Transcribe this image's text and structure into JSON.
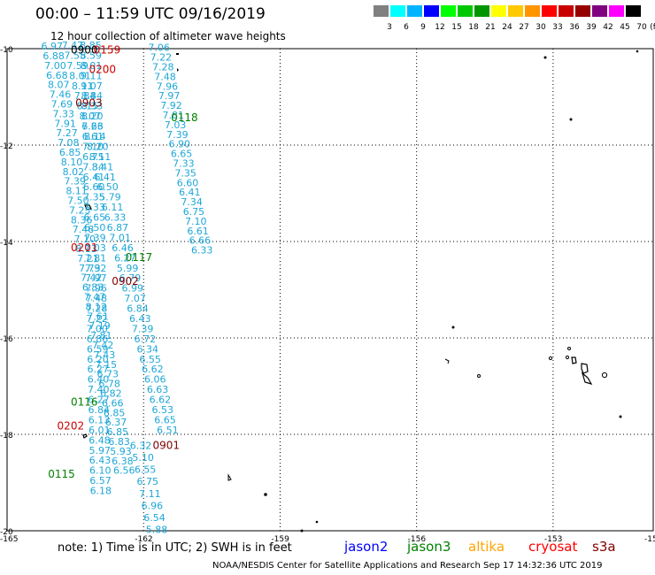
{
  "title": "00:00 – 11:59 UTC 09/16/2019",
  "subtitle": "12 hour collection of altimeter wave heights",
  "legend": {
    "unit": "(ft)",
    "colors": [
      "#808080",
      "#00ffff",
      "#00b4ff",
      "#0000ff",
      "#00ff00",
      "#00c800",
      "#009600",
      "#ffff00",
      "#ffc800",
      "#ff9600",
      "#ff0000",
      "#c80000",
      "#960000",
      "#800080",
      "#ff00ff",
      "#000000"
    ],
    "labels": [
      "3",
      "6",
      "9",
      "12",
      "15",
      "18",
      "21",
      "24",
      "27",
      "30",
      "33",
      "36",
      "39",
      "42",
      "45",
      "70"
    ]
  },
  "axes": {
    "lon_labels": [
      "-165",
      "-162",
      "-159",
      "-156",
      "-153",
      "-15"
    ],
    "lat_labels": [
      "-10",
      "-12",
      "-14",
      "-16",
      "-18",
      "-20"
    ]
  },
  "pass_times": [
    {
      "text": "0900",
      "color": "#000000",
      "lon": -163.6,
      "lat": -10.1
    },
    {
      "text": "0159",
      "color": "#cc0000",
      "lon": -163.1,
      "lat": -10.1
    },
    {
      "text": "0200",
      "color": "#cc0000",
      "lon": -163.2,
      "lat": -10.5
    },
    {
      "text": "0903",
      "color": "#800000",
      "lon": -163.5,
      "lat": -11.2
    },
    {
      "text": "0118",
      "color": "#008000",
      "lon": -161.4,
      "lat": -11.5
    },
    {
      "text": "0201",
      "color": "#cc0000",
      "lon": -163.6,
      "lat": -14.2
    },
    {
      "text": "0117",
      "color": "#008000",
      "lon": -162.4,
      "lat": -14.4
    },
    {
      "text": "0902",
      "color": "#800000",
      "lon": -162.7,
      "lat": -14.9
    },
    {
      "text": "0116",
      "color": "#008000",
      "lon": -163.6,
      "lat": -17.4
    },
    {
      "text": "0202",
      "color": "#cc0000",
      "lon": -163.9,
      "lat": -17.9
    },
    {
      "text": "0901",
      "color": "#800000",
      "lon": -161.8,
      "lat": -18.3
    },
    {
      "text": "0115",
      "color": "#008000",
      "lon": -164.1,
      "lat": -18.9
    }
  ],
  "wave_heights": {
    "color": "#1ea7d7",
    "track_a": {
      "lon0": -164.25,
      "lat0": -10.02,
      "dlon": 0.036,
      "dlat": -0.2,
      "values": [
        "6.97",
        "6.88",
        "7.00",
        "6.68",
        "8.07",
        "7.46",
        "7.69",
        "7.33",
        "7.91",
        "7.27",
        "7.08",
        "6.85",
        "8.10",
        "8.02",
        "7.39",
        "8.11",
        "7.50",
        "7.23",
        "8.36",
        "7.48",
        "7.10",
        "8.13",
        "7.21",
        "7.73",
        "7.42",
        "6.83",
        "7.47",
        "8.12",
        "7.61",
        "7.19",
        "7.81",
        "7.42",
        "7.43",
        "7.15",
        "6.73",
        "6.78",
        "6.82",
        "6.66",
        "6.85",
        "6.37",
        "6.85",
        "6.83",
        "5.93",
        "6.38",
        "6.56"
      ]
    },
    "track_b": {
      "lon0": -163.8,
      "lat0": -10.0,
      "dlon": 0.055,
      "dlat": -0.21,
      "values": [
        "7.47",
        "7.55",
        "7.59",
        "8.01",
        "8.11",
        "7.84",
        "8.15",
        "8.07",
        "7.23",
        "8.14",
        "8.20",
        "8.11",
        "8.41",
        "6.41",
        "6.50",
        "5.79",
        "6.11",
        "6.33",
        "6.87",
        "7.01",
        "6.46",
        "6.27",
        "5.99",
        "6.79",
        "6.99",
        "7.07",
        "6.84",
        "6.43",
        "7.39",
        "6.72",
        "6.34",
        "6.55",
        "6.62",
        "6.06",
        "6.63",
        "6.62",
        "6.53",
        "6.65",
        "6.51"
      ]
    },
    "track_c": {
      "lon0": -163.4,
      "lat0": -10.0,
      "dlon": 0.005,
      "dlat": -0.21,
      "values": [
        "8.85",
        "8.59",
        "8.01",
        "9.11",
        "9.07",
        "8.84",
        "8.33",
        "8.20",
        "6.66",
        "6.61",
        "7.10",
        "6.75",
        "7.34",
        "6.41",
        "6.60",
        "7.35",
        "7.33",
        "6.65",
        "6.50",
        "7.39",
        "7.03",
        "7.81",
        "7.92",
        "7.97",
        "7.96",
        "7.48",
        "7.28",
        "7.22",
        "7.00",
        "6.86",
        "6.59",
        "6.20",
        "6.27",
        "6.40",
        "7.40",
        "6.27",
        "6.84",
        "6.13",
        "6.01",
        "6.48",
        "5.97",
        "6.43",
        "6.10",
        "6.57",
        "6.18"
      ]
    },
    "track_d": {
      "lon0": -161.9,
      "lat0": -10.05,
      "dlon": 0.045,
      "dlat": -0.2,
      "values": [
        "7.06",
        "7.22",
        "7.28",
        "7.48",
        "7.96",
        "7.97",
        "7.92",
        "7.81",
        "7.03",
        "7.39",
        "6.90",
        "6.65",
        "7.33",
        "7.35",
        "6.60",
        "6.41",
        "7.34",
        "6.75",
        "7.10",
        "6.61",
        "6.66",
        "6.33"
      ]
    },
    "track_e": {
      "lon0": -162.3,
      "lat0": -18.3,
      "dlon": 0.05,
      "dlat": -0.25,
      "values": [
        "6.32",
        "5.10",
        "6.55",
        "6.75",
        "7.11",
        "6.96",
        "6.54",
        "5.88"
      ]
    }
  },
  "note": "note:  1) Time is in UTC;  2) SWH is in feet",
  "satellites": [
    {
      "name": "jason2",
      "color": "#0000ff"
    },
    {
      "name": "jason3",
      "color": "#008000"
    },
    {
      "name": "altika",
      "color": "#ffa500"
    },
    {
      "name": "cryosat",
      "color": "#ff0000"
    },
    {
      "name": "s3a",
      "color": "#800000"
    }
  ],
  "credit": "NOAA/NESDIS Center for Satellite Applications and Research     Sep 17 14:32:36 UTC 2019"
}
